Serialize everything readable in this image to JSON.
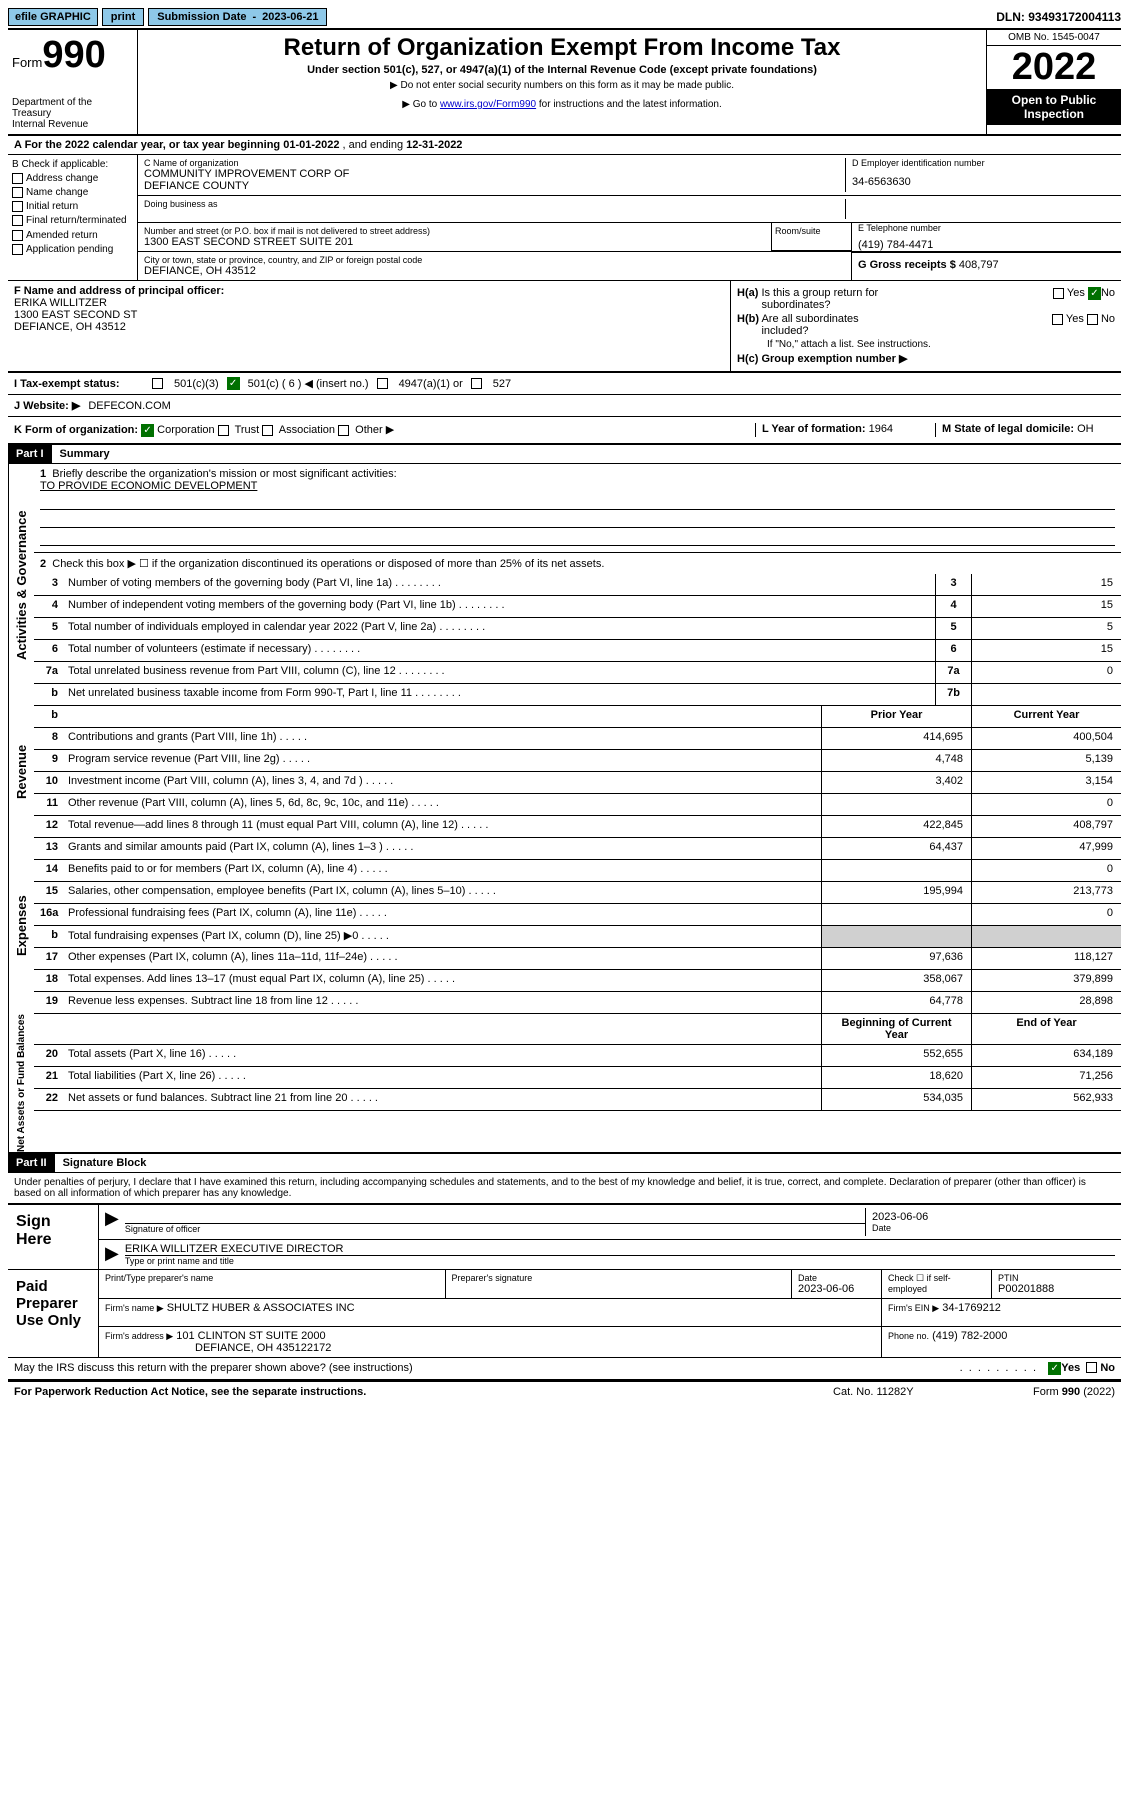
{
  "topbar": {
    "efile": "efile GRAPHIC",
    "print": "print",
    "sub_date_label": "Submission Date",
    "sub_date_value": "2023-06-21",
    "dln_label": "DLN:",
    "dln_value": "93493172004113"
  },
  "header": {
    "form_label": "Form",
    "form_number": "990",
    "dept": "Department of the Treasury\nInternal Revenue Service",
    "title": "Return of Organization Exempt From Income Tax",
    "subtitle": "Under section 501(c), 527, or 4947(a)(1) of the Internal Revenue Code (except private foundations)",
    "note1": "▶ Do not enter social security numbers on this form as it may be made public.",
    "note2_pre": "▶ Go to ",
    "note2_link": "www.irs.gov/Form990",
    "note2_post": " for instructions and the latest information.",
    "omb": "OMB No. 1545-0047",
    "year": "2022",
    "inspect": "Open to Public Inspection"
  },
  "lineA": {
    "text_pre": "A For the 2022 calendar year, or tax year beginning ",
    "begin": "01-01-2022",
    "mid": "  , and ending ",
    "end": "12-31-2022"
  },
  "colB": {
    "label": "B Check if applicable:",
    "items": [
      "Address change",
      "Name change",
      "Initial return",
      "Final return/terminated",
      "Amended return",
      "Application pending"
    ]
  },
  "org": {
    "name_label": "C Name of organization",
    "name1": "COMMUNITY IMPROVEMENT CORP OF",
    "name2": "DEFIANCE COUNTY",
    "dba_label": "Doing business as",
    "addr_label": "Number and street (or P.O. box if mail is not delivered to street address)",
    "addr": "1300 EAST SECOND STREET SUITE 201",
    "room_label": "Room/suite",
    "city_label": "City or town, state or province, country, and ZIP or foreign postal code",
    "city": "DEFIANCE, OH  43512"
  },
  "colD": {
    "ein_label": "D Employer identification number",
    "ein": "34-6563630",
    "phone_label": "E Telephone number",
    "phone": "(419) 784-4471",
    "gross_label": "G Gross receipts $",
    "gross": "408,797"
  },
  "sectionF": {
    "label": "F Name and address of principal officer:",
    "name": "ERIKA WILLITZER",
    "addr1": "1300 EAST SECOND ST",
    "addr2": "DEFIANCE, OH  43512"
  },
  "sectionH": {
    "ha_label": "H(a)  Is this a group return for",
    "ha_label2": "subordinates?",
    "hb_label": "H(b)  Are all subordinates included?",
    "hb_note": "If \"No,\" attach a list. See instructions.",
    "hc_label": "H(c)  Group exemption number ▶",
    "yes": "Yes",
    "no": "No"
  },
  "rowI": {
    "label": "I   Tax-exempt status:",
    "opt1": "501(c)(3)",
    "opt2": "501(c) ( 6 ) ◀ (insert no.)",
    "opt3": "4947(a)(1) or",
    "opt4": "527"
  },
  "rowJ": {
    "label": "J   Website: ▶",
    "value": "DEFECON.COM"
  },
  "rowK": {
    "label": "K Form of organization:",
    "opts": [
      "Corporation",
      "Trust",
      "Association",
      "Other ▶"
    ]
  },
  "rowL": {
    "label": "L Year of formation:",
    "value": "1964"
  },
  "rowM": {
    "label": "M State of legal domicile:",
    "value": "OH"
  },
  "part1": {
    "hdr": "Part I",
    "title": "Summary",
    "line1_label": "Briefly describe the organization's mission or most significant activities:",
    "line1_value": "TO PROVIDE ECONOMIC DEVELOPMENT",
    "line2": "Check this box ▶ ☐  if the organization discontinued its operations or disposed of more than 25% of its net assets.",
    "side1": "Activities & Governance",
    "side2": "Revenue",
    "side3": "Expenses",
    "side4": "Net Assets or Fund Balances",
    "rows_gov": [
      {
        "n": "3",
        "d": "Number of voting members of the governing body (Part VI, line 1a)",
        "b": "3",
        "v": "15"
      },
      {
        "n": "4",
        "d": "Number of independent voting members of the governing body (Part VI, line 1b)",
        "b": "4",
        "v": "15"
      },
      {
        "n": "5",
        "d": "Total number of individuals employed in calendar year 2022 (Part V, line 2a)",
        "b": "5",
        "v": "5"
      },
      {
        "n": "6",
        "d": "Total number of volunteers (estimate if necessary)",
        "b": "6",
        "v": "15"
      },
      {
        "n": "7a",
        "d": "Total unrelated business revenue from Part VIII, column (C), line 12",
        "b": "7a",
        "v": "0"
      },
      {
        "n": "b",
        "d": "Net unrelated business taxable income from Form 990-T, Part I, line 11",
        "b": "7b",
        "v": ""
      }
    ],
    "col_prior": "Prior Year",
    "col_current": "Current Year",
    "rows_rev": [
      {
        "n": "8",
        "d": "Contributions and grants (Part VIII, line 1h)",
        "p": "414,695",
        "c": "400,504"
      },
      {
        "n": "9",
        "d": "Program service revenue (Part VIII, line 2g)",
        "p": "4,748",
        "c": "5,139"
      },
      {
        "n": "10",
        "d": "Investment income (Part VIII, column (A), lines 3, 4, and 7d )",
        "p": "3,402",
        "c": "3,154"
      },
      {
        "n": "11",
        "d": "Other revenue (Part VIII, column (A), lines 5, 6d, 8c, 9c, 10c, and 11e)",
        "p": "",
        "c": "0"
      },
      {
        "n": "12",
        "d": "Total revenue—add lines 8 through 11 (must equal Part VIII, column (A), line 12)",
        "p": "422,845",
        "c": "408,797"
      }
    ],
    "rows_exp": [
      {
        "n": "13",
        "d": "Grants and similar amounts paid (Part IX, column (A), lines 1–3 )",
        "p": "64,437",
        "c": "47,999"
      },
      {
        "n": "14",
        "d": "Benefits paid to or for members (Part IX, column (A), line 4)",
        "p": "",
        "c": "0"
      },
      {
        "n": "15",
        "d": "Salaries, other compensation, employee benefits (Part IX, column (A), lines 5–10)",
        "p": "195,994",
        "c": "213,773"
      },
      {
        "n": "16a",
        "d": "Professional fundraising fees (Part IX, column (A), line 11e)",
        "p": "",
        "c": "0"
      },
      {
        "n": "b",
        "d": "Total fundraising expenses (Part IX, column (D), line 25) ▶0",
        "p": "grey",
        "c": "grey"
      },
      {
        "n": "17",
        "d": "Other expenses (Part IX, column (A), lines 11a–11d, 11f–24e)",
        "p": "97,636",
        "c": "118,127"
      },
      {
        "n": "18",
        "d": "Total expenses. Add lines 13–17 (must equal Part IX, column (A), line 25)",
        "p": "358,067",
        "c": "379,899"
      },
      {
        "n": "19",
        "d": "Revenue less expenses. Subtract line 18 from line 12",
        "p": "64,778",
        "c": "28,898"
      }
    ],
    "col_begin": "Beginning of Current Year",
    "col_end": "End of Year",
    "rows_net": [
      {
        "n": "20",
        "d": "Total assets (Part X, line 16)",
        "p": "552,655",
        "c": "634,189"
      },
      {
        "n": "21",
        "d": "Total liabilities (Part X, line 26)",
        "p": "18,620",
        "c": "71,256"
      },
      {
        "n": "22",
        "d": "Net assets or fund balances. Subtract line 21 from line 20",
        "p": "534,035",
        "c": "562,933"
      }
    ]
  },
  "part2": {
    "hdr": "Part II",
    "title": "Signature Block",
    "declaration": "Under penalties of perjury, I declare that I have examined this return, including accompanying schedules and statements, and to the best of my knowledge and belief, it is true, correct, and complete. Declaration of preparer (other than officer) is based on all information of which preparer has any knowledge.",
    "sign_here": "Sign Here",
    "sig_officer": "Signature of officer",
    "sig_date": "2023-06-06",
    "date_label": "Date",
    "officer_name": "ERIKA WILLITZER  EXECUTIVE DIRECTOR",
    "officer_label": "Type or print name and title",
    "paid_label": "Paid Preparer Use Only",
    "prep_name_label": "Print/Type preparer's name",
    "prep_sig_label": "Preparer's signature",
    "prep_date": "2023-06-06",
    "check_if": "Check ☐ if self-employed",
    "ptin_label": "PTIN",
    "ptin": "P00201888",
    "firm_name_label": "Firm's name    ▶",
    "firm_name": "SHULTZ HUBER & ASSOCIATES INC",
    "firm_ein_label": "Firm's EIN ▶",
    "firm_ein": "34-1769212",
    "firm_addr_label": "Firm's address ▶",
    "firm_addr1": "101 CLINTON ST SUITE 2000",
    "firm_addr2": "DEFIANCE, OH  435122172",
    "firm_phone_label": "Phone no.",
    "firm_phone": "(419) 782-2000",
    "discuss": "May the IRS discuss this return with the preparer shown above? (see instructions)"
  },
  "footer": {
    "pra": "For Paperwork Reduction Act Notice, see the separate instructions.",
    "cat": "Cat. No. 11282Y",
    "form": "Form 990 (2022)"
  }
}
